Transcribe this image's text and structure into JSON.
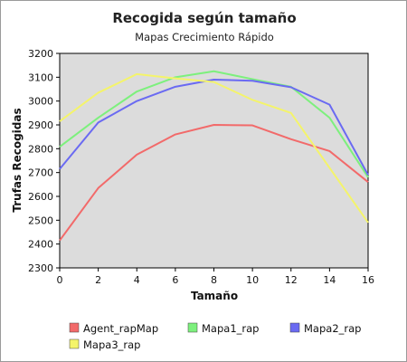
{
  "chart_data": {
    "type": "line",
    "title": "Recogida según tamaño",
    "subtitle": "Mapas Crecimiento Rápido",
    "xlabel": "Tamaño",
    "ylabel": "Trufas Recogidas",
    "xlim": [
      0,
      16
    ],
    "ylim": [
      2300,
      3200
    ],
    "xticks": [
      0,
      2,
      4,
      6,
      8,
      10,
      12,
      14,
      16
    ],
    "yticks": [
      2300,
      2400,
      2500,
      2600,
      2700,
      2800,
      2900,
      3000,
      3100,
      3200
    ],
    "grid": false,
    "legend_position": "bottom",
    "x": [
      0,
      2,
      4,
      6,
      8,
      10,
      12,
      14,
      16
    ],
    "series": [
      {
        "name": "Agent_rapMap",
        "color": "#f26a6a",
        "values": [
          2415,
          2635,
          2775,
          2860,
          2900,
          2898,
          2840,
          2790,
          2660
        ]
      },
      {
        "name": "Mapa1_rap",
        "color": "#7df07d",
        "values": [
          2808,
          2930,
          3040,
          3100,
          3125,
          3092,
          3060,
          2930,
          2680
        ]
      },
      {
        "name": "Mapa2_rap",
        "color": "#6a6af2",
        "values": [
          2715,
          2910,
          3000,
          3060,
          3090,
          3085,
          3058,
          2985,
          2690
        ]
      },
      {
        "name": "Mapa3_rap",
        "color": "#f4f46a",
        "values": [
          2915,
          3035,
          3113,
          3095,
          3080,
          3005,
          2950,
          2720,
          2490
        ]
      }
    ]
  }
}
